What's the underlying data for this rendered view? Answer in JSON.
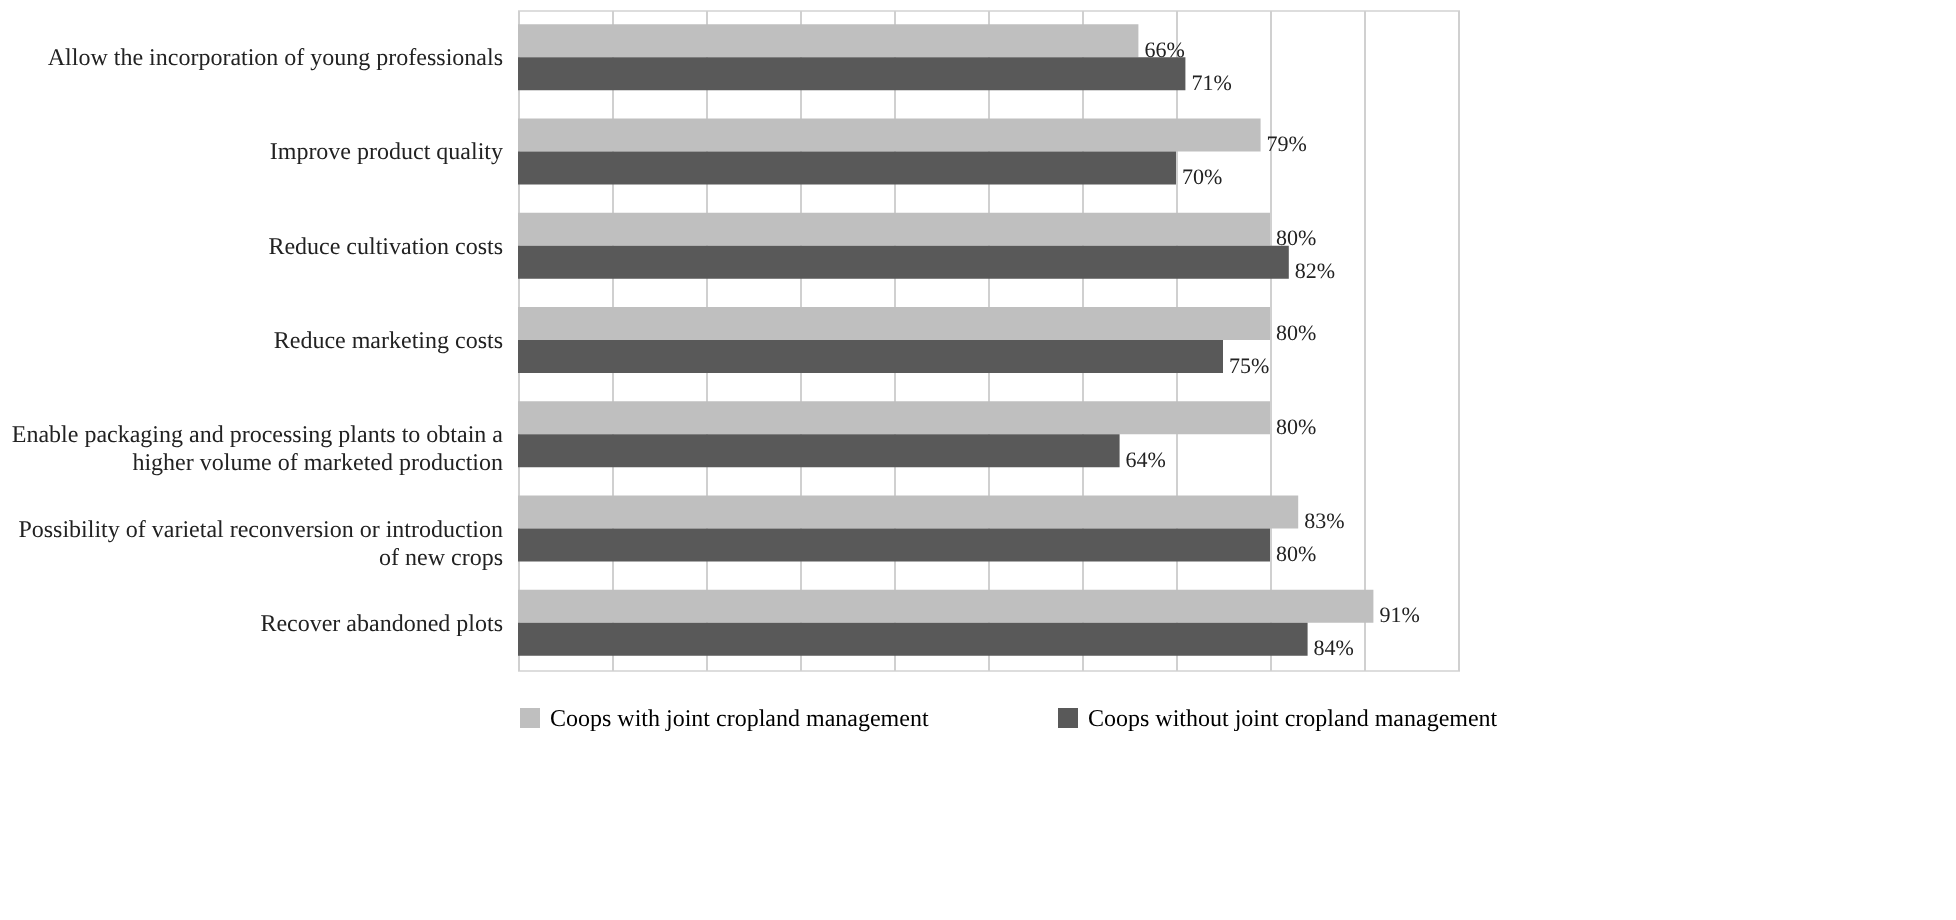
{
  "chart_data": {
    "type": "bar",
    "orientation": "horizontal",
    "categories": [
      "Allow the incorporation of young professionals",
      "Improve product quality",
      "Reduce cultivation costs",
      "Reduce marketing costs",
      "Enable packaging and processing plants to obtain a higher volume of marketed production",
      "Possibility of varietal reconversion or introduction of new crops",
      "Recover abandoned plots"
    ],
    "series": [
      {
        "name": "Coops  with joint cropland management",
        "color": "#bfbfbf",
        "values": [
          66,
          79,
          80,
          80,
          80,
          83,
          91
        ],
        "value_labels": [
          "66%",
          "79%",
          "80%",
          "80%",
          "80%",
          "83%",
          "91%"
        ]
      },
      {
        "name": "Coops without joint cropland management",
        "color": "#595959",
        "values": [
          71,
          70,
          82,
          75,
          64,
          80,
          84
        ],
        "value_labels": [
          "71%",
          "70%",
          "82%",
          "75%",
          "64%",
          "80%",
          "84%"
        ]
      }
    ],
    "xlim": [
      0,
      100
    ],
    "xticks": [
      {
        "value": 0,
        "label": null
      },
      {
        "value": 10,
        "label": null
      },
      {
        "value": 20,
        "label": null
      },
      {
        "value": 30,
        "label": null
      },
      {
        "value": 40,
        "label": null
      },
      {
        "value": 50,
        "label": null
      },
      {
        "value": 60,
        "label": null
      },
      {
        "value": 70,
        "label": null
      },
      {
        "value": 80,
        "label": null
      },
      {
        "value": 90,
        "label": null
      },
      {
        "value": 100,
        "label": null
      }
    ],
    "grid": "x",
    "legend": "bottom",
    "tick_labels": "y"
  }
}
